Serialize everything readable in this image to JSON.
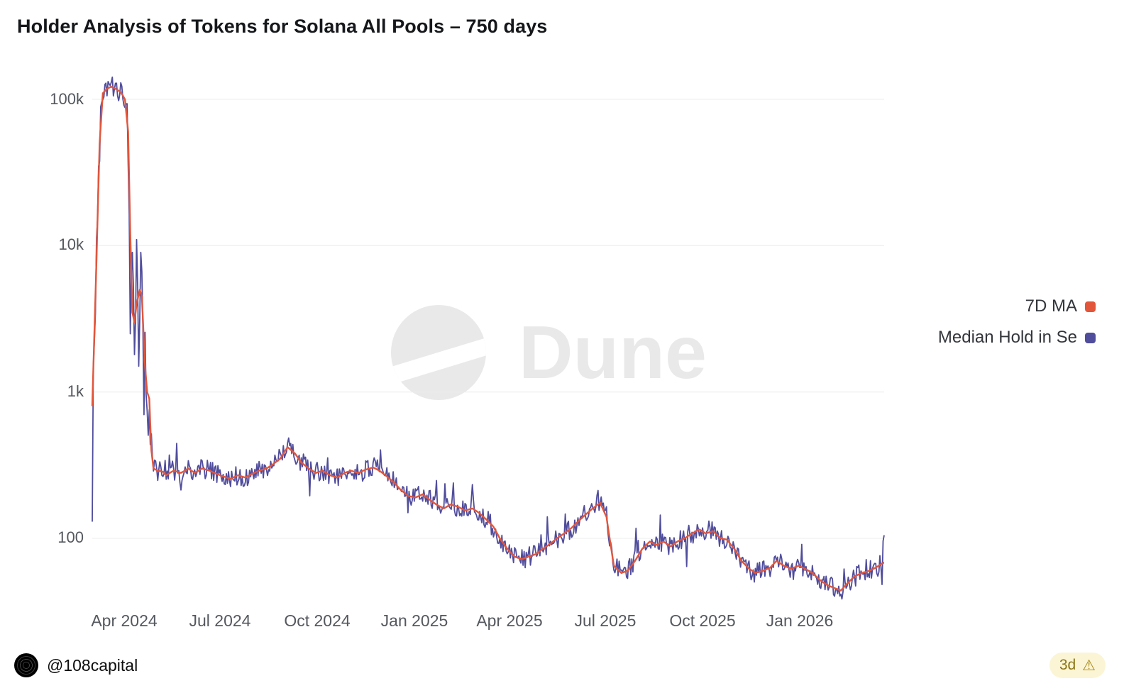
{
  "title": "Holder Analysis of Tokens for Solana All Pools – 750 days",
  "watermark": "Dune",
  "legend": [
    {
      "label": "7D MA",
      "color": "#e2563c"
    },
    {
      "label": "Median Hold in Se",
      "color": "#504d9c"
    }
  ],
  "footer": {
    "author": "@108capital",
    "staleness": "3d",
    "warning_icon": "⚠"
  },
  "chart_data": {
    "type": "line",
    "title": "Holder Analysis of Tokens for Solana All Pools – 750 days",
    "xlabel": "",
    "ylabel": "",
    "y_scale": "log",
    "ylim": [
      33,
      160000
    ],
    "grid": "horizontal",
    "legend_position": "right",
    "x_range_days": 750,
    "y_ticks": [
      "100k",
      "10k",
      "1k",
      "100"
    ],
    "y_tick_values": [
      100000,
      10000,
      1000,
      100
    ],
    "x_ticks": [
      "Apr 2024",
      "Jul 2024",
      "Oct 2024",
      "Jan 2025",
      "Apr 2025",
      "Jul 2025",
      "Oct 2025",
      "Jan 2026"
    ],
    "x_tick_days": [
      30,
      121,
      213,
      305,
      395,
      486,
      578,
      670
    ],
    "series": [
      {
        "name": "7D MA",
        "color": "#e2563c",
        "keypoints": [
          [
            0,
            800
          ],
          [
            4,
            8000
          ],
          [
            7,
            50000
          ],
          [
            10,
            110000
          ],
          [
            14,
            118000
          ],
          [
            18,
            122000
          ],
          [
            22,
            118000
          ],
          [
            27,
            112000
          ],
          [
            31,
            100000
          ],
          [
            34,
            60000
          ],
          [
            36,
            12000
          ],
          [
            38,
            3500
          ],
          [
            40,
            3000
          ],
          [
            42,
            4000
          ],
          [
            45,
            5000
          ],
          [
            47,
            4500
          ],
          [
            50,
            1500
          ],
          [
            52,
            1000
          ],
          [
            54,
            900
          ],
          [
            56,
            400
          ],
          [
            58,
            300
          ],
          [
            62,
            290
          ],
          [
            67,
            285
          ],
          [
            70,
            270
          ],
          [
            77,
            290
          ],
          [
            84,
            280
          ],
          [
            91,
            300
          ],
          [
            97,
            280
          ],
          [
            104,
            300
          ],
          [
            111,
            290
          ],
          [
            118,
            275
          ],
          [
            124,
            265
          ],
          [
            131,
            255
          ],
          [
            138,
            270
          ],
          [
            145,
            260
          ],
          [
            151,
            275
          ],
          [
            158,
            290
          ],
          [
            165,
            300
          ],
          [
            171,
            320
          ],
          [
            178,
            350
          ],
          [
            185,
            420
          ],
          [
            192,
            380
          ],
          [
            198,
            330
          ],
          [
            205,
            300
          ],
          [
            212,
            280
          ],
          [
            218,
            290
          ],
          [
            225,
            270
          ],
          [
            232,
            260
          ],
          [
            239,
            280
          ],
          [
            245,
            290
          ],
          [
            252,
            280
          ],
          [
            259,
            295
          ],
          [
            266,
            305
          ],
          [
            272,
            290
          ],
          [
            279,
            265
          ],
          [
            286,
            240
          ],
          [
            292,
            215
          ],
          [
            299,
            195
          ],
          [
            306,
            190
          ],
          [
            313,
            200
          ],
          [
            319,
            185
          ],
          [
            326,
            170
          ],
          [
            333,
            160
          ],
          [
            339,
            170
          ],
          [
            346,
            165
          ],
          [
            353,
            155
          ],
          [
            360,
            160
          ],
          [
            366,
            150
          ],
          [
            373,
            135
          ],
          [
            380,
            120
          ],
          [
            386,
            100
          ],
          [
            393,
            85
          ],
          [
            400,
            75
          ],
          [
            407,
            72
          ],
          [
            413,
            75
          ],
          [
            420,
            78
          ],
          [
            427,
            85
          ],
          [
            434,
            92
          ],
          [
            440,
            100
          ],
          [
            447,
            108
          ],
          [
            454,
            118
          ],
          [
            460,
            130
          ],
          [
            467,
            145
          ],
          [
            474,
            160
          ],
          [
            481,
            175
          ],
          [
            487,
            140
          ],
          [
            491,
            90
          ],
          [
            494,
            65
          ],
          [
            501,
            58
          ],
          [
            507,
            60
          ],
          [
            514,
            70
          ],
          [
            521,
            85
          ],
          [
            528,
            95
          ],
          [
            534,
            90
          ],
          [
            541,
            95
          ],
          [
            548,
            88
          ],
          [
            554,
            95
          ],
          [
            561,
            100
          ],
          [
            568,
            108
          ],
          [
            575,
            115
          ],
          [
            581,
            108
          ],
          [
            588,
            112
          ],
          [
            595,
            100
          ],
          [
            601,
            98
          ],
          [
            608,
            85
          ],
          [
            615,
            70
          ],
          [
            622,
            62
          ],
          [
            628,
            58
          ],
          [
            635,
            60
          ],
          [
            642,
            63
          ],
          [
            648,
            70
          ],
          [
            655,
            65
          ],
          [
            662,
            62
          ],
          [
            669,
            65
          ],
          [
            675,
            62
          ],
          [
            682,
            58
          ],
          [
            689,
            52
          ],
          [
            696,
            48
          ],
          [
            702,
            46
          ],
          [
            709,
            44
          ],
          [
            716,
            50
          ],
          [
            722,
            55
          ],
          [
            729,
            58
          ],
          [
            736,
            60
          ],
          [
            742,
            63
          ],
          [
            749,
            68
          ]
        ]
      },
      {
        "name": "Median Hold in Se",
        "color": "#504d9c",
        "derived_from": "7D MA",
        "noise_seed": 42,
        "noise_log10": 0.07,
        "noise_extra_prob": 0.07,
        "noise_extra_log10": 0.18,
        "volatile": [
          [
            0,
            8,
            0.15
          ],
          [
            33,
            56,
            0.28
          ]
        ],
        "spike_points": [
          [
            0,
            130
          ],
          [
            36,
            2500
          ],
          [
            38,
            9000
          ],
          [
            40,
            1800
          ],
          [
            42,
            11000
          ],
          [
            44,
            1500
          ],
          [
            46,
            9000
          ],
          [
            49,
            700
          ],
          [
            750,
            105
          ]
        ]
      }
    ]
  }
}
